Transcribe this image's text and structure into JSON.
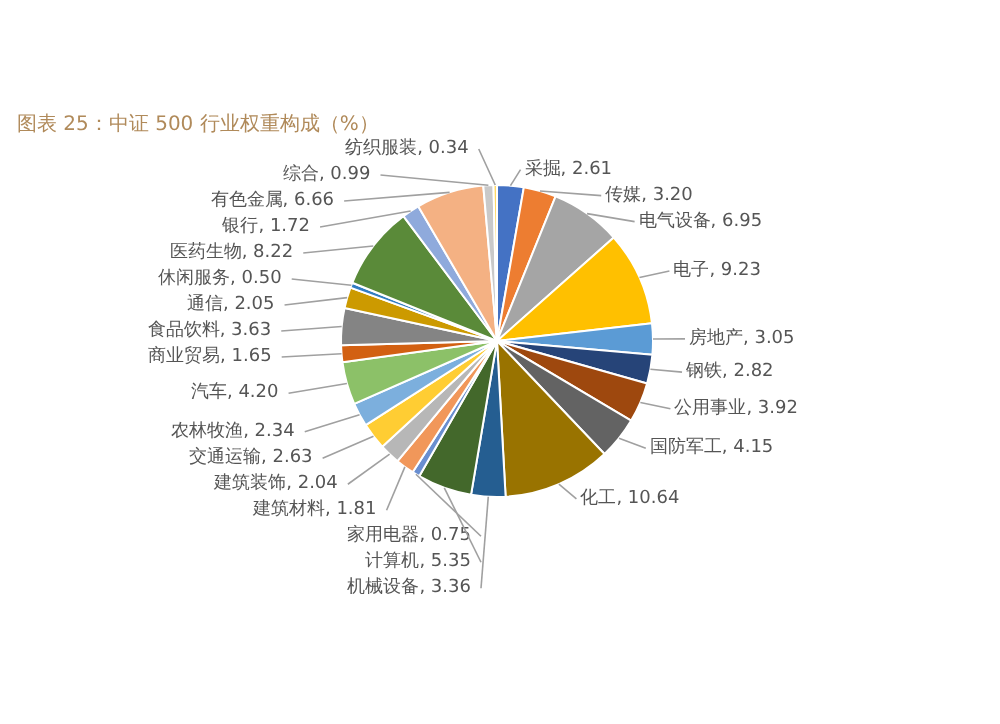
{
  "chart_data": {
    "type": "pie",
    "title": "图表 25：中证 500 行业权重构成（%）",
    "categories": [
      "采掘",
      "传媒",
      "电气设备",
      "电子",
      "房地产",
      "钢铁",
      "公用事业",
      "国防军工",
      "化工",
      "机械设备",
      "计算机",
      "家用电器",
      "建筑材料",
      "建筑装饰",
      "交通运输",
      "农林牧渔",
      "汽车",
      "商业贸易",
      "食品饮料",
      "通信",
      "休闲服务",
      "医药生物",
      "银行",
      "有色金属",
      "综合",
      "纺织服装"
    ],
    "values": [
      2.61,
      3.2,
      6.95,
      9.23,
      3.05,
      2.82,
      3.92,
      4.15,
      10.64,
      3.36,
      5.35,
      0.75,
      1.81,
      2.04,
      2.63,
      2.34,
      4.2,
      1.65,
      3.63,
      2.05,
      0.5,
      8.22,
      1.72,
      6.66,
      0.99,
      0.34
    ],
    "colors": [
      "#4472c4",
      "#ed7d31",
      "#a5a5a5",
      "#ffc000",
      "#5b9bd5",
      "#264478",
      "#9e480e",
      "#636363",
      "#997300",
      "#255e91",
      "#43682b",
      "#698ed0",
      "#f1975a",
      "#b7b7b7",
      "#ffcd33",
      "#7cafdd",
      "#8cc168",
      "#d26012",
      "#848484",
      "#cc9a00",
      "#327dc2",
      "#5a8a39",
      "#8faadc",
      "#f4b183",
      "#c9c9c9",
      "#ffd966"
    ],
    "value_labels": [
      ", 2.61",
      ", 3.20",
      ", 6.95",
      ", 9.23",
      ", 3.05",
      ", 2.82",
      ", 3.92",
      ", 4.15",
      ", 10.64",
      ", 3.36",
      ", 5.35",
      ", 0.75",
      ", 1.81",
      ", 2.04",
      ", 2.63",
      ", 2.34",
      ", 4.20",
      ", 1.65",
      ", 3.63",
      ", 2.05",
      ", 0.50",
      ", 8.22",
      ", 1.72",
      ", 6.66",
      ", 0.99",
      ", 0.34"
    ]
  }
}
